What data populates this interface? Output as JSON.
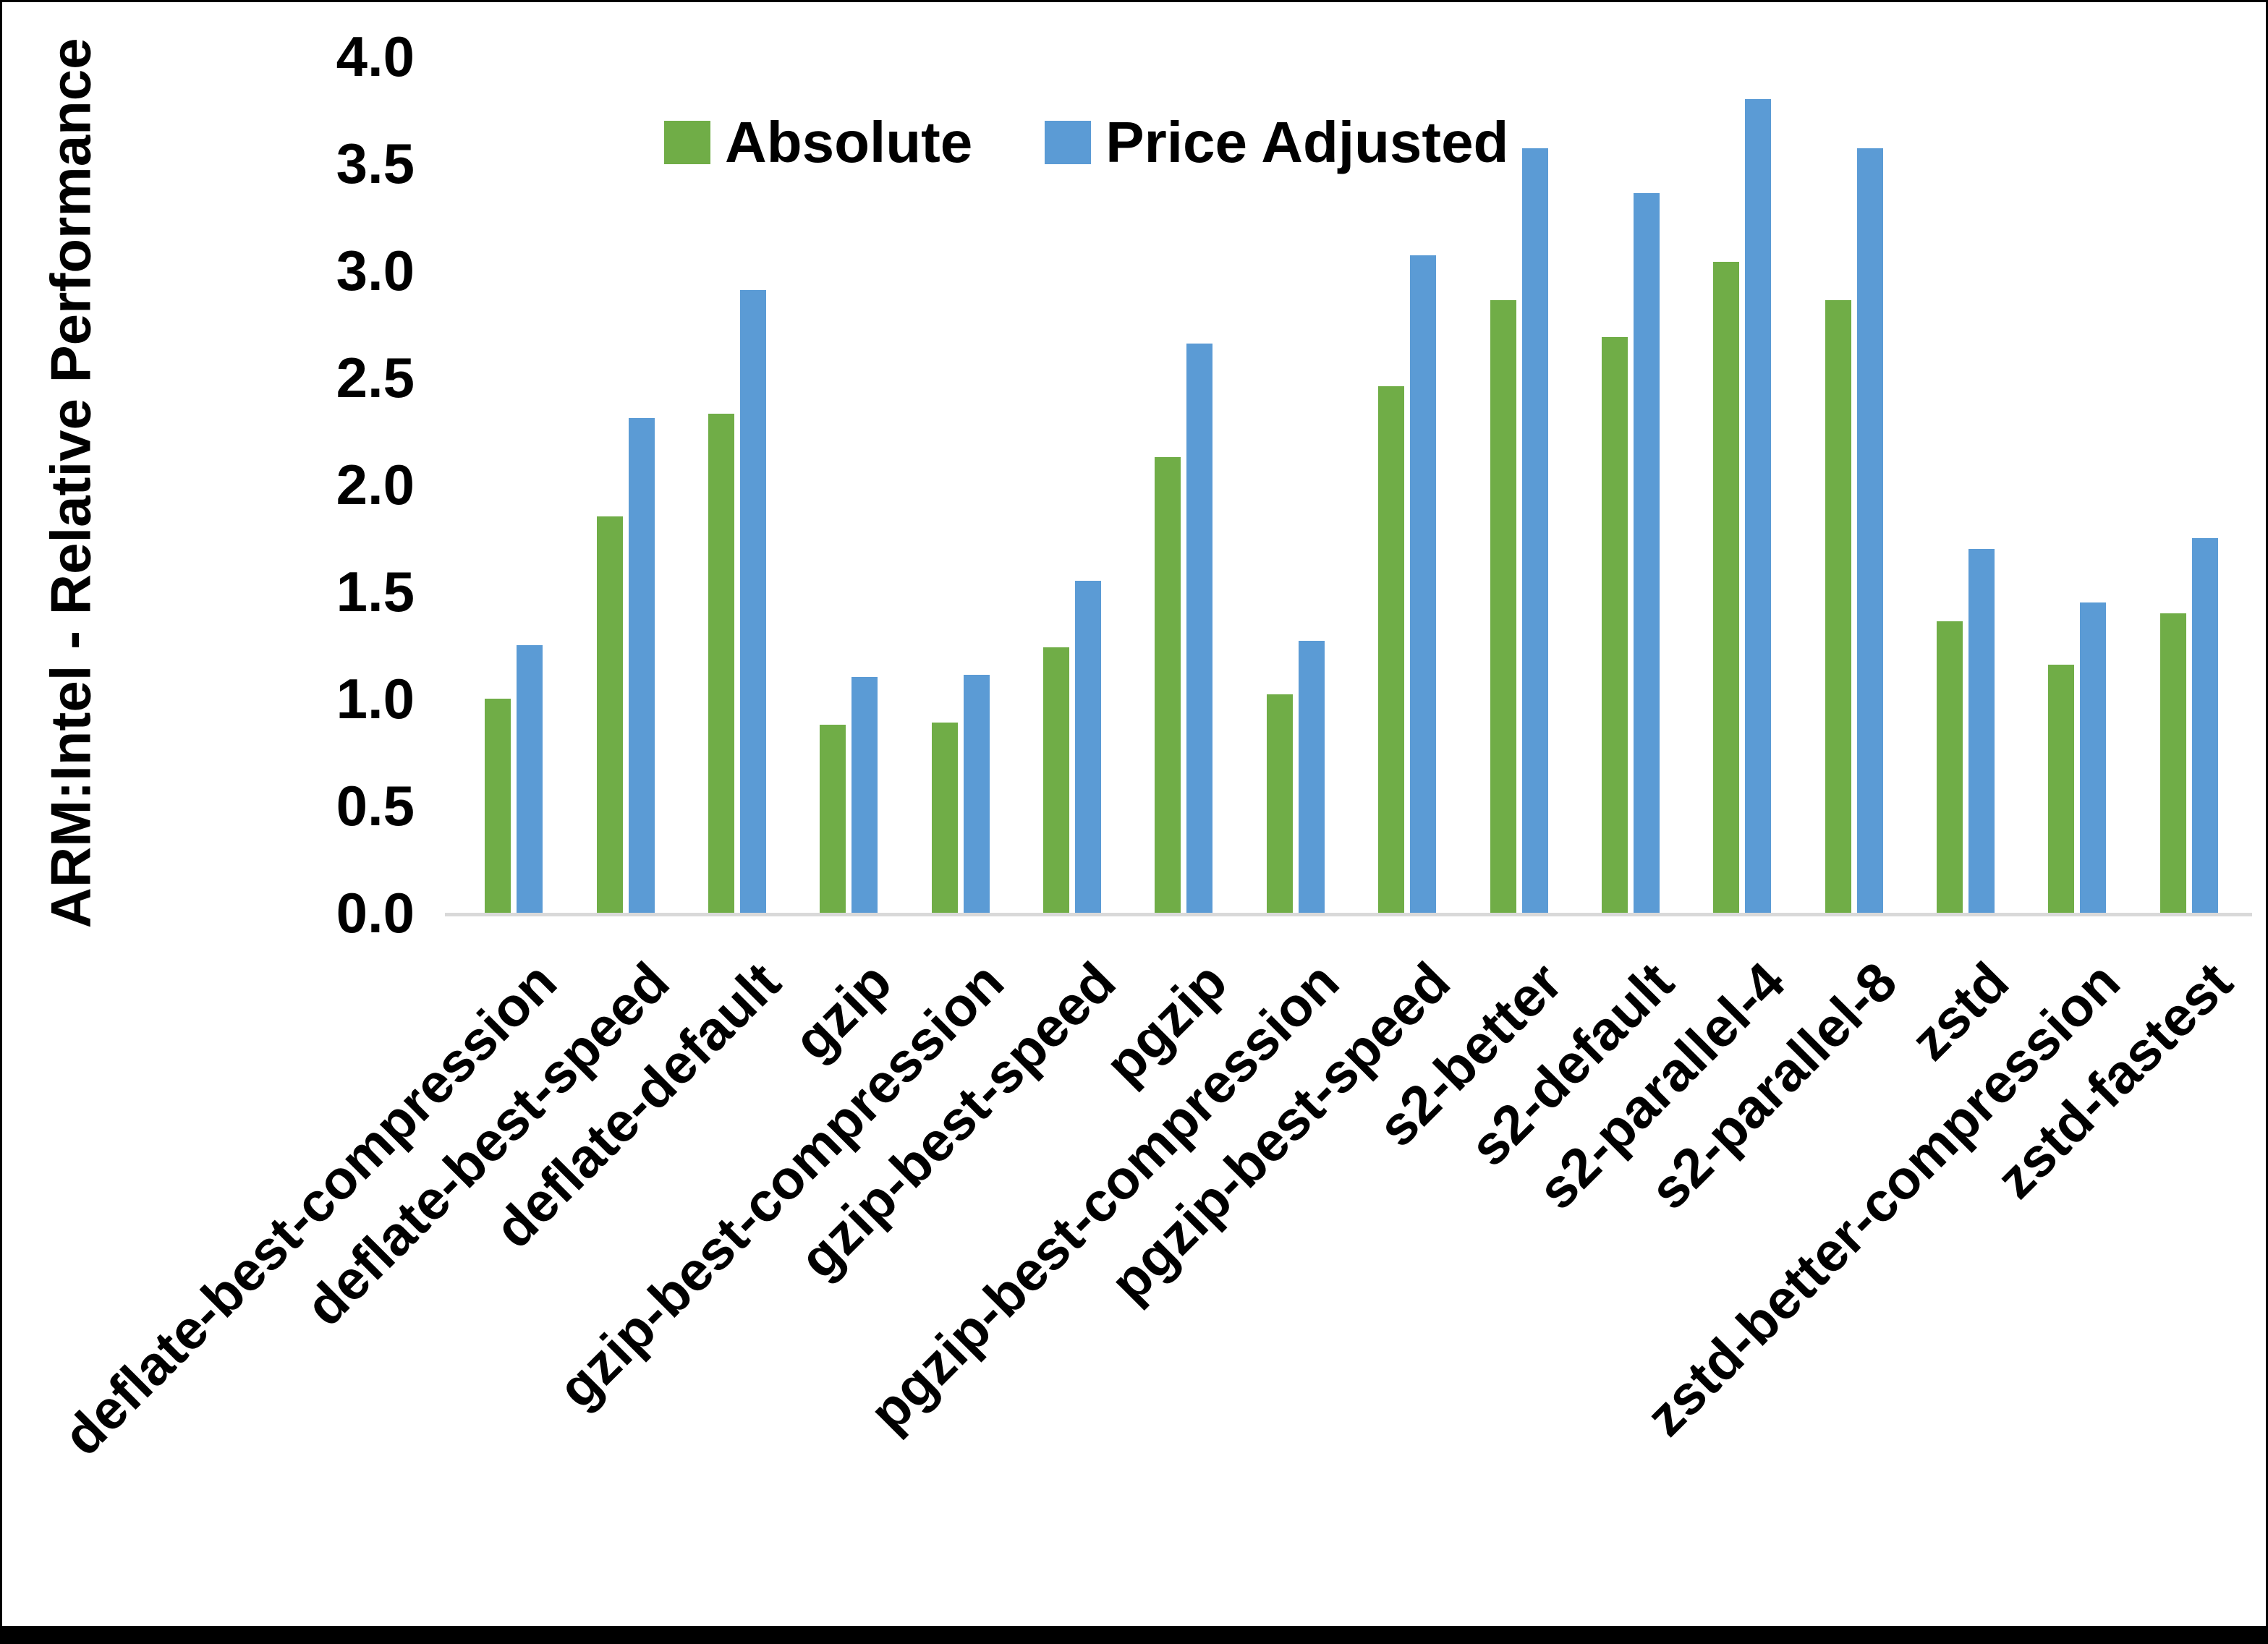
{
  "chart_data": {
    "type": "bar",
    "title": "",
    "ylabel": "ARM:Intel - Relative Performance",
    "xlabel": "",
    "ylim": [
      0,
      4
    ],
    "ytick_step": 0.5,
    "yticks": [
      "0.0",
      "0.5",
      "1.0",
      "1.5",
      "2.0",
      "2.5",
      "3.0",
      "3.5",
      "4.0"
    ],
    "grid": false,
    "legend_position": "top-center",
    "categories": [
      "deflate-best-compression",
      "deflate-best-speed",
      "deflate-default",
      "gzip",
      "gzip-best-compression",
      "gzip-best-speed",
      "pgzip",
      "pgzip-best-compression",
      "pgzip-best-speed",
      "s2-better",
      "s2-default",
      "s2-parallel-4",
      "s2-parallel-8",
      "zstd",
      "zstd-better-compression",
      "zstd-fastest"
    ],
    "series": [
      {
        "name": "Absolute",
        "color": "#70AD47",
        "values": [
          1.0,
          1.85,
          2.33,
          0.88,
          0.89,
          1.24,
          2.13,
          1.02,
          2.46,
          2.86,
          2.69,
          3.04,
          2.86,
          1.36,
          1.16,
          1.4
        ]
      },
      {
        "name": "Price Adjusted",
        "color": "#5B9BD5",
        "values": [
          1.25,
          2.31,
          2.91,
          1.1,
          1.11,
          1.55,
          2.66,
          1.27,
          3.07,
          3.57,
          3.36,
          3.8,
          3.57,
          1.7,
          1.45,
          1.75
        ]
      }
    ]
  },
  "colors": {
    "axis_line": "#D9D9D9",
    "text": "#000000",
    "bottom_bar": "#000000",
    "background": "#FFFFFF"
  }
}
